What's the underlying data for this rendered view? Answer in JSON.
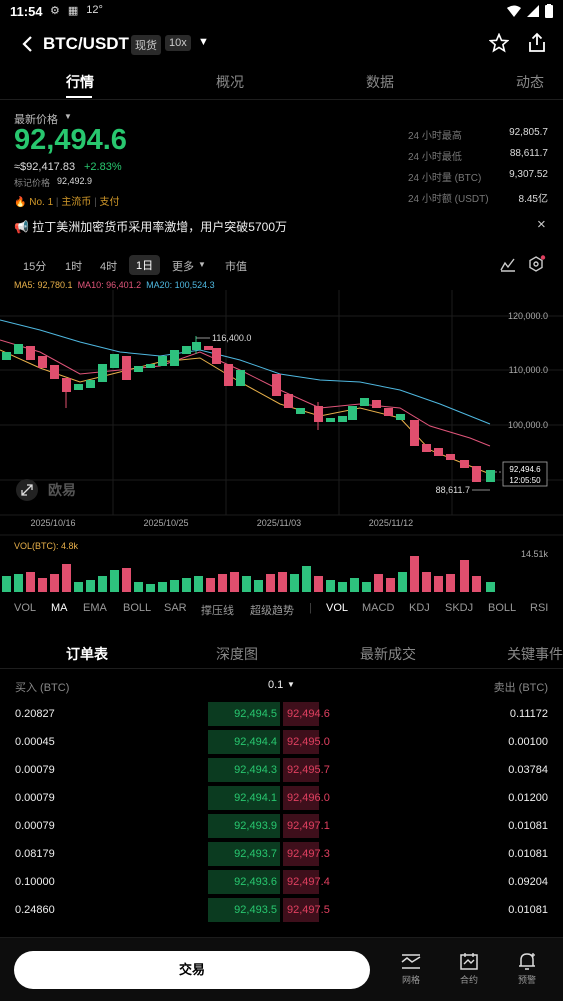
{
  "status": {
    "time": "11:54",
    "temp": "12°"
  },
  "header": {
    "pair": "BTC/USDT",
    "tag_spot": "现货",
    "tag_leverage": "10x"
  },
  "tabs": [
    "行情",
    "概况",
    "数据",
    "动态"
  ],
  "price": {
    "label": "最新价格",
    "last": "92,494.6",
    "approx": "≈$92,417.83",
    "change": "+2.83%",
    "mark_label": "标记价格",
    "mark": "92,492.9"
  },
  "stats": [
    {
      "label": "24 小时最高",
      "value": "92,805.7"
    },
    {
      "label": "24 小时最低",
      "value": "88,611.7"
    },
    {
      "label": "24 小时量 (BTC)",
      "value": "9,307.52"
    },
    {
      "label": "24 小时额 (USDT)",
      "value": "8.45亿"
    }
  ],
  "rank": {
    "no": "No. 1",
    "tag1": "主流币",
    "tag2": "支付"
  },
  "news": {
    "text": "拉丁美洲加密货币采用率激增，用户突破5700万",
    "close": "×"
  },
  "intervals": [
    "15分",
    "1时",
    "4时",
    "1日",
    "更多",
    "市值"
  ],
  "ma": {
    "ma5": "MA5: 92,780.1",
    "ma10": "MA10: 96,401.2",
    "ma20": "MA20: 100,524.3"
  },
  "chart_data": {
    "type": "candlestick",
    "y_ticks": [
      "120,000.0",
      "110,000.0",
      "100,000.0"
    ],
    "x_ticks": [
      "2025/10/16",
      "2025/10/25",
      "2025/11/03",
      "2025/11/12"
    ],
    "high_label": "116,400.0",
    "low_label": "88,611.7",
    "current_price": "92,494.6",
    "countdown": "12:05:50",
    "watermark": "欧易",
    "vol_label": "VOL(BTC): 4.8k",
    "vol_max": "14.51k"
  },
  "indicators_left": [
    "VOL",
    "MA",
    "EMA",
    "BOLL",
    "SAR",
    "撑压线",
    "超级趋势"
  ],
  "indicators_right": [
    "VOL",
    "MACD",
    "KDJ",
    "SKDJ",
    "BOLL",
    "RSI"
  ],
  "orderbook": {
    "tabs": [
      "订单表",
      "深度图",
      "最新成交",
      "关键事件"
    ],
    "buy_label": "买入 (BTC)",
    "step": "0.1",
    "sell_label": "卖出 (BTC)",
    "rows": [
      {
        "bq": "0.20827",
        "bp": "92,494.5",
        "ap": "92,494.6",
        "aq": "0.11172",
        "bw": 0.25,
        "aw": 0.13
      },
      {
        "bq": "0.00045",
        "bp": "92,494.4",
        "ap": "92,495.0",
        "aq": "0.00100",
        "bw": 0.0,
        "aw": 0.0
      },
      {
        "bq": "0.00079",
        "bp": "92,494.3",
        "ap": "92,495.7",
        "aq": "0.03784",
        "bw": 0.0,
        "aw": 0.05
      },
      {
        "bq": "0.00079",
        "bp": "92,494.1",
        "ap": "92,496.0",
        "aq": "0.01200",
        "bw": 0.0,
        "aw": 0.01
      },
      {
        "bq": "0.00079",
        "bp": "92,493.9",
        "ap": "92,497.1",
        "aq": "0.01081",
        "bw": 0.0,
        "aw": 0.01
      },
      {
        "bq": "0.08179",
        "bp": "92,493.7",
        "ap": "92,497.3",
        "aq": "0.01081",
        "bw": 0.1,
        "aw": 0.01
      },
      {
        "bq": "0.10000",
        "bp": "92,493.6",
        "ap": "92,497.4",
        "aq": "0.09204",
        "bw": 0.12,
        "aw": 0.11
      },
      {
        "bq": "0.24860",
        "bp": "92,493.5",
        "ap": "92,497.5",
        "aq": "0.01081",
        "bw": 0.3,
        "aw": 0.01
      }
    ]
  },
  "bottom": {
    "trade": "交易",
    "grid": "网格",
    "contract": "合约",
    "alert": "预警"
  }
}
